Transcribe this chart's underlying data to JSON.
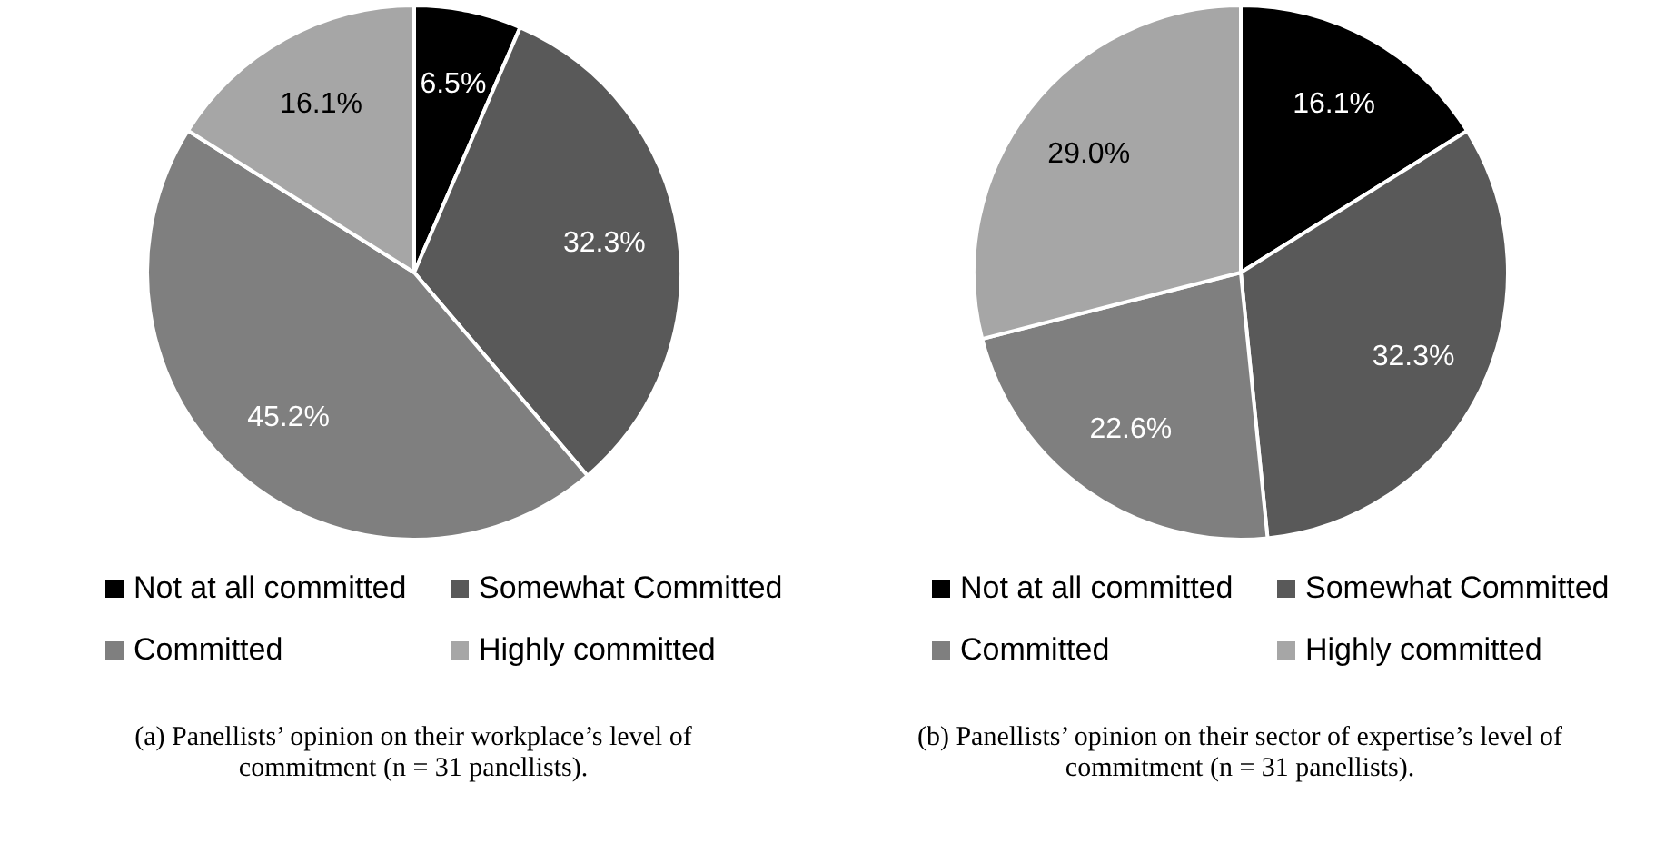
{
  "chart_data": [
    {
      "type": "pie",
      "categories": [
        "Not at all committed",
        "Somewhat Committed",
        "Committed",
        "Highly committed"
      ],
      "values": [
        6.5,
        32.3,
        45.2,
        16.1
      ],
      "colors": [
        "#000000",
        "#595959",
        "#7f7f7f",
        "#a6a6a6"
      ],
      "value_labels": [
        "6.5%",
        "32.3%",
        "45.2%",
        "16.1%"
      ],
      "legend": "bottom",
      "annotations": [
        "(a) Panellists’ opinion on their workplace’s level of commitment (n = 31 panellists)."
      ]
    },
    {
      "type": "pie",
      "categories": [
        "Not at all committed",
        "Somewhat Committed",
        "Committed",
        "Highly committed"
      ],
      "values": [
        16.1,
        32.3,
        22.6,
        29.0
      ],
      "colors": [
        "#000000",
        "#595959",
        "#7f7f7f",
        "#a6a6a6"
      ],
      "value_labels": [
        "16.1%",
        "32.3%",
        "22.6%",
        "29.0%"
      ],
      "legend": "bottom",
      "annotations": [
        "(b) Panellists’ opinion on their sector of expertise’s level of commitment (n = 31 panellists)."
      ]
    }
  ]
}
